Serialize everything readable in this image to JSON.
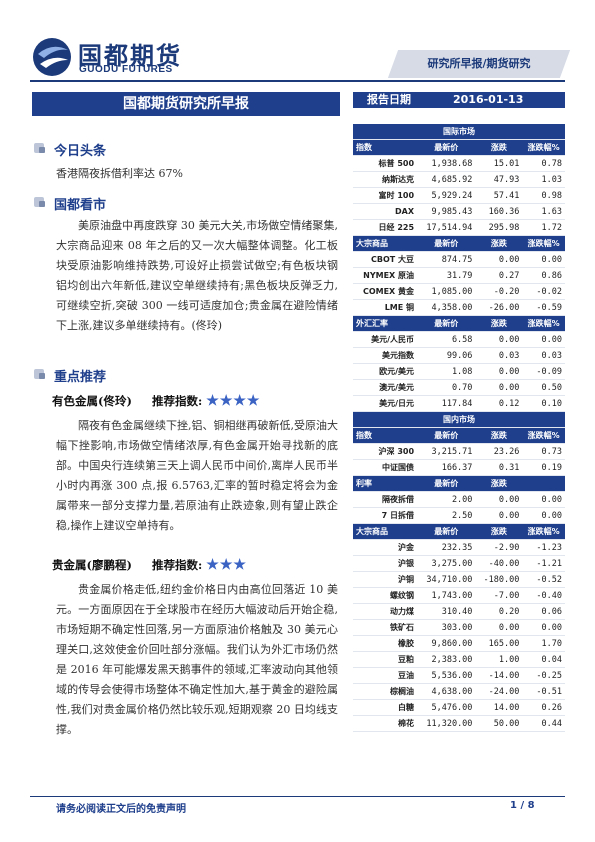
{
  "header": {
    "logo_cn": "国都期货",
    "logo_en": "GUODU FUTURES",
    "tag": "研究所早报/期货研究"
  },
  "report": {
    "title": "国都期货研究所早报",
    "date_label": "报告日期",
    "date": "2016-01-13"
  },
  "sections": {
    "headline": {
      "title": "今日头条",
      "text": "香港隔夜拆借利率达 67%"
    },
    "outlook": {
      "title": "国都看市",
      "text": "美原油盘中再度跌穿 30 美元大关,市场做空情绪聚集,大宗商品迎来 08 年之后的又一次大幅整体调整。化工板块受原油影响维持跌势,可设好止损尝试做空;有色板块钢铝均创出六年新低,建议空单继续持有;黑色板块反弹乏力,可继续空折,突破 300 一线可适度加仓;贵金属在避险情绪下上涨,建议多单继续持有。(佟玲)"
    },
    "picks": {
      "title": "重点推荐",
      "items": [
        {
          "name": "有色金属(佟玲)",
          "rating_label": "推荐指数:",
          "stars": "★★★★",
          "text": "隔夜有色金属继续下挫,铝、铜相继再破新低,受原油大幅下挫影响,市场做空情绪浓厚,有色金属开始寻找新的底部。中国央行连续第三天上调人民币中间价,离岸人民币半小时内再涨 300 点,报 6.5763,汇率的暂时稳定将会为金属带来一部分支撑力量,若原油有止跌迹象,则有望止跌企稳,操作上建议空单持有。"
        },
        {
          "name": "贵金属(廖鹏程)",
          "rating_label": "推荐指数:",
          "stars": "★★★",
          "text": "贵金属价格走低,纽约金价格日内由高位回落近 10 美元。一方面原因在于全球股市在经历大幅波动后开始企稳,市场短期不确定性回落,另一方面原油价格触及 30 美元心理关口,这效使金价回吐部分涨幅。我们认为外汇市场仍然是 2016 年可能爆发黑天鹅事件的领域,汇率波动向其他领域的传导会使得市场整体不确定性加大,基于黄金的避险属性,我们对贵金属价格仍然比较乐观,短期观察 20 日均线支撑。"
        }
      ]
    }
  },
  "market": {
    "intl_title": "国际市场",
    "domestic_title": "国内市场",
    "col_change": "涨跌",
    "col_pct": "涨跌幅%",
    "groups": [
      {
        "head": [
          "指数",
          "最新价",
          "涨跌",
          "涨跌幅%"
        ],
        "rows": [
          [
            "标普 500",
            "1,938.68",
            "15.01",
            "0.78"
          ],
          [
            "纳斯达克",
            "4,685.92",
            "47.93",
            "1.03"
          ],
          [
            "富时 100",
            "5,929.24",
            "57.41",
            "0.98"
          ],
          [
            "DAX",
            "9,985.43",
            "160.36",
            "1.63"
          ],
          [
            "日经 225",
            "17,514.94",
            "295.98",
            "1.72"
          ]
        ]
      },
      {
        "head": [
          "大宗商品",
          "最新价",
          "涨跌",
          "涨跌幅%"
        ],
        "rows": [
          [
            "CBOT 大豆",
            "874.75",
            "0.00",
            "0.00"
          ],
          [
            "NYMEX 原油",
            "31.79",
            "0.27",
            "0.86"
          ],
          [
            "COMEX 黄金",
            "1,085.00",
            "-0.20",
            "-0.02"
          ],
          [
            "LME 铜",
            "4,358.00",
            "-26.00",
            "-0.59"
          ]
        ]
      },
      {
        "head": [
          "外汇汇率",
          "最新价",
          "涨跌",
          "涨跌幅%"
        ],
        "rows": [
          [
            "美元/人民币",
            "6.58",
            "0.00",
            "0.00"
          ],
          [
            "美元指数",
            "99.06",
            "0.03",
            "0.03"
          ],
          [
            "欧元/美元",
            "1.08",
            "0.00",
            "-0.09"
          ],
          [
            "澳元/美元",
            "0.70",
            "0.00",
            "0.50"
          ],
          [
            "美元/日元",
            "117.84",
            "0.12",
            "0.10"
          ]
        ]
      },
      {
        "head": [
          "指数",
          "最新价",
          "涨跌",
          "涨跌幅%"
        ],
        "rows": [
          [
            "沪深 300",
            "3,215.71",
            "23.26",
            "0.73"
          ],
          [
            "中证国债",
            "166.37",
            "0.31",
            "0.19"
          ]
        ]
      },
      {
        "head": [
          "利率",
          "最新价",
          "涨跌",
          ""
        ],
        "rows": [
          [
            "隔夜拆借",
            "2.00",
            "0.00",
            "0.00"
          ],
          [
            "7 日拆借",
            "2.50",
            "0.00",
            "0.00"
          ]
        ]
      },
      {
        "head": [
          "大宗商品",
          "最新价",
          "涨跌",
          "涨跌幅%"
        ],
        "rows": [
          [
            "沪金",
            "232.35",
            "-2.90",
            "-1.23"
          ],
          [
            "沪银",
            "3,275.00",
            "-40.00",
            "-1.21"
          ],
          [
            "沪铜",
            "34,710.00",
            "-180.00",
            "-0.52"
          ],
          [
            "螺纹钢",
            "1,743.00",
            "-7.00",
            "-0.40"
          ],
          [
            "动力煤",
            "310.40",
            "0.20",
            "0.06"
          ],
          [
            "铁矿石",
            "303.00",
            "0.00",
            "0.00"
          ],
          [
            "橡胶",
            "9,860.00",
            "165.00",
            "1.70"
          ],
          [
            "豆粕",
            "2,383.00",
            "1.00",
            "0.04"
          ],
          [
            "豆油",
            "5,536.00",
            "-14.00",
            "-0.25"
          ],
          [
            "棕榈油",
            "4,638.00",
            "-24.00",
            "-0.51"
          ],
          [
            "白糖",
            "5,476.00",
            "14.00",
            "0.26"
          ],
          [
            "棉花",
            "11,320.00",
            "50.00",
            "0.44"
          ]
        ]
      }
    ]
  },
  "footer": {
    "disclaimer": "请务必阅读正文后的免责声明",
    "page": "1 / 8"
  },
  "colors": {
    "brand": "#1f3f8c",
    "accent_star": "#3b63c4"
  }
}
